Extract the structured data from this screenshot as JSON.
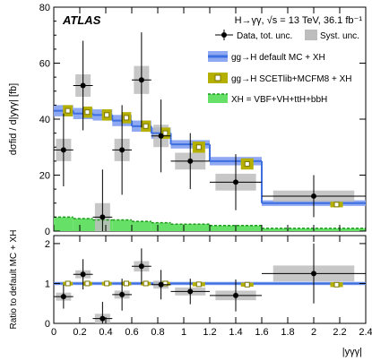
{
  "chart_data": [
    {
      "type": "bar",
      "panel": "main",
      "experiment_label": "ATLAS",
      "process_label": "H→γγ, √s = 13 TeV, 36.1 fb⁻¹",
      "ylabel": "dσfid / d|yγγ| [fb]",
      "ylim": [
        0,
        80
      ],
      "yticks": [
        0,
        20,
        40,
        60,
        80
      ],
      "bins": [
        [
          0,
          0.15
        ],
        [
          0.15,
          0.3
        ],
        [
          0.3,
          0.45
        ],
        [
          0.45,
          0.6
        ],
        [
          0.6,
          0.75
        ],
        [
          0.75,
          0.9
        ],
        [
          0.9,
          1.2
        ],
        [
          1.2,
          1.6
        ],
        [
          1.6,
          2.4
        ]
      ],
      "legend": {
        "data": "Data, tot. unc.",
        "syst": "Syst. unc.",
        "default_mc": "gg→H default MC + XH",
        "scetlib": "gg→H SCETlib+MCFM8 + XH",
        "xh": "XH = VBF+VH+ttH+bbH"
      },
      "series": [
        {
          "key": "data",
          "values": [
            29,
            52,
            5,
            29,
            54,
            34,
            25,
            17.5,
            12.5
          ],
          "err_tot": [
            13,
            16,
            17,
            16,
            17,
            13,
            10,
            10,
            7.5
          ],
          "err_syst": [
            4,
            4,
            5,
            4,
            5,
            4,
            3,
            3,
            2
          ]
        },
        {
          "key": "default_mc",
          "values": [
            43,
            42,
            41.5,
            39.5,
            37.5,
            35,
            31,
            25,
            10
          ],
          "unc": [
            2,
            2,
            2,
            2,
            2,
            2,
            1.5,
            1.5,
            1
          ]
        },
        {
          "key": "scetlib",
          "values": [
            43,
            42.5,
            41.5,
            40.5,
            37.5,
            35,
            30,
            24,
            9.5
          ],
          "unc": [
            2,
            2,
            2,
            2,
            2,
            2,
            2,
            2,
            1
          ]
        },
        {
          "key": "xh",
          "values": [
            5,
            4.5,
            4,
            4,
            3.5,
            3,
            2.5,
            2,
            1
          ]
        }
      ]
    },
    {
      "type": "scatter",
      "panel": "ratio",
      "ylabel": "Ratio to default MC + XH",
      "xlabel": "|yγγ|",
      "ylim": [
        0,
        2.2
      ],
      "yticks": [
        0,
        1,
        2
      ],
      "xlim": [
        0,
        2.4
      ],
      "xticks": [
        0,
        0.2,
        0.4,
        0.6,
        0.8,
        1,
        1.2,
        1.4,
        1.6,
        1.8,
        2,
        2.2,
        2.4
      ],
      "series": [
        {
          "key": "data_ratio",
          "values": [
            0.67,
            1.23,
            0.12,
            0.72,
            1.43,
            0.97,
            0.8,
            0.7,
            1.25
          ],
          "err_tot": [
            0.3,
            0.38,
            0.42,
            0.4,
            0.45,
            0.37,
            0.32,
            0.4,
            0.75
          ],
          "err_syst": [
            0.1,
            0.1,
            0.12,
            0.1,
            0.13,
            0.1,
            0.1,
            0.12,
            0.2
          ]
        },
        {
          "key": "default_ratio",
          "values": [
            1,
            1,
            1,
            1,
            1,
            1,
            1,
            1,
            1
          ],
          "unc": [
            0.04,
            0.04,
            0.04,
            0.04,
            0.04,
            0.04,
            0.04,
            0.04,
            0.04
          ]
        },
        {
          "key": "scetlib_ratio",
          "values": [
            1,
            1,
            1,
            1,
            1,
            1,
            0.98,
            0.97,
            0.97
          ],
          "unc": [
            0.04,
            0.04,
            0.04,
            0.04,
            0.04,
            0.04,
            0.05,
            0.05,
            0.06
          ]
        }
      ]
    }
  ],
  "colors": {
    "data": "#000000",
    "syst_band": "#bdbdbd",
    "default_mc": "#3d6fe0",
    "default_band": "#8ea8f2",
    "scetlib": "#b5b000",
    "xh_fill": "#66e066",
    "xh_line": "#1b9a1b"
  }
}
